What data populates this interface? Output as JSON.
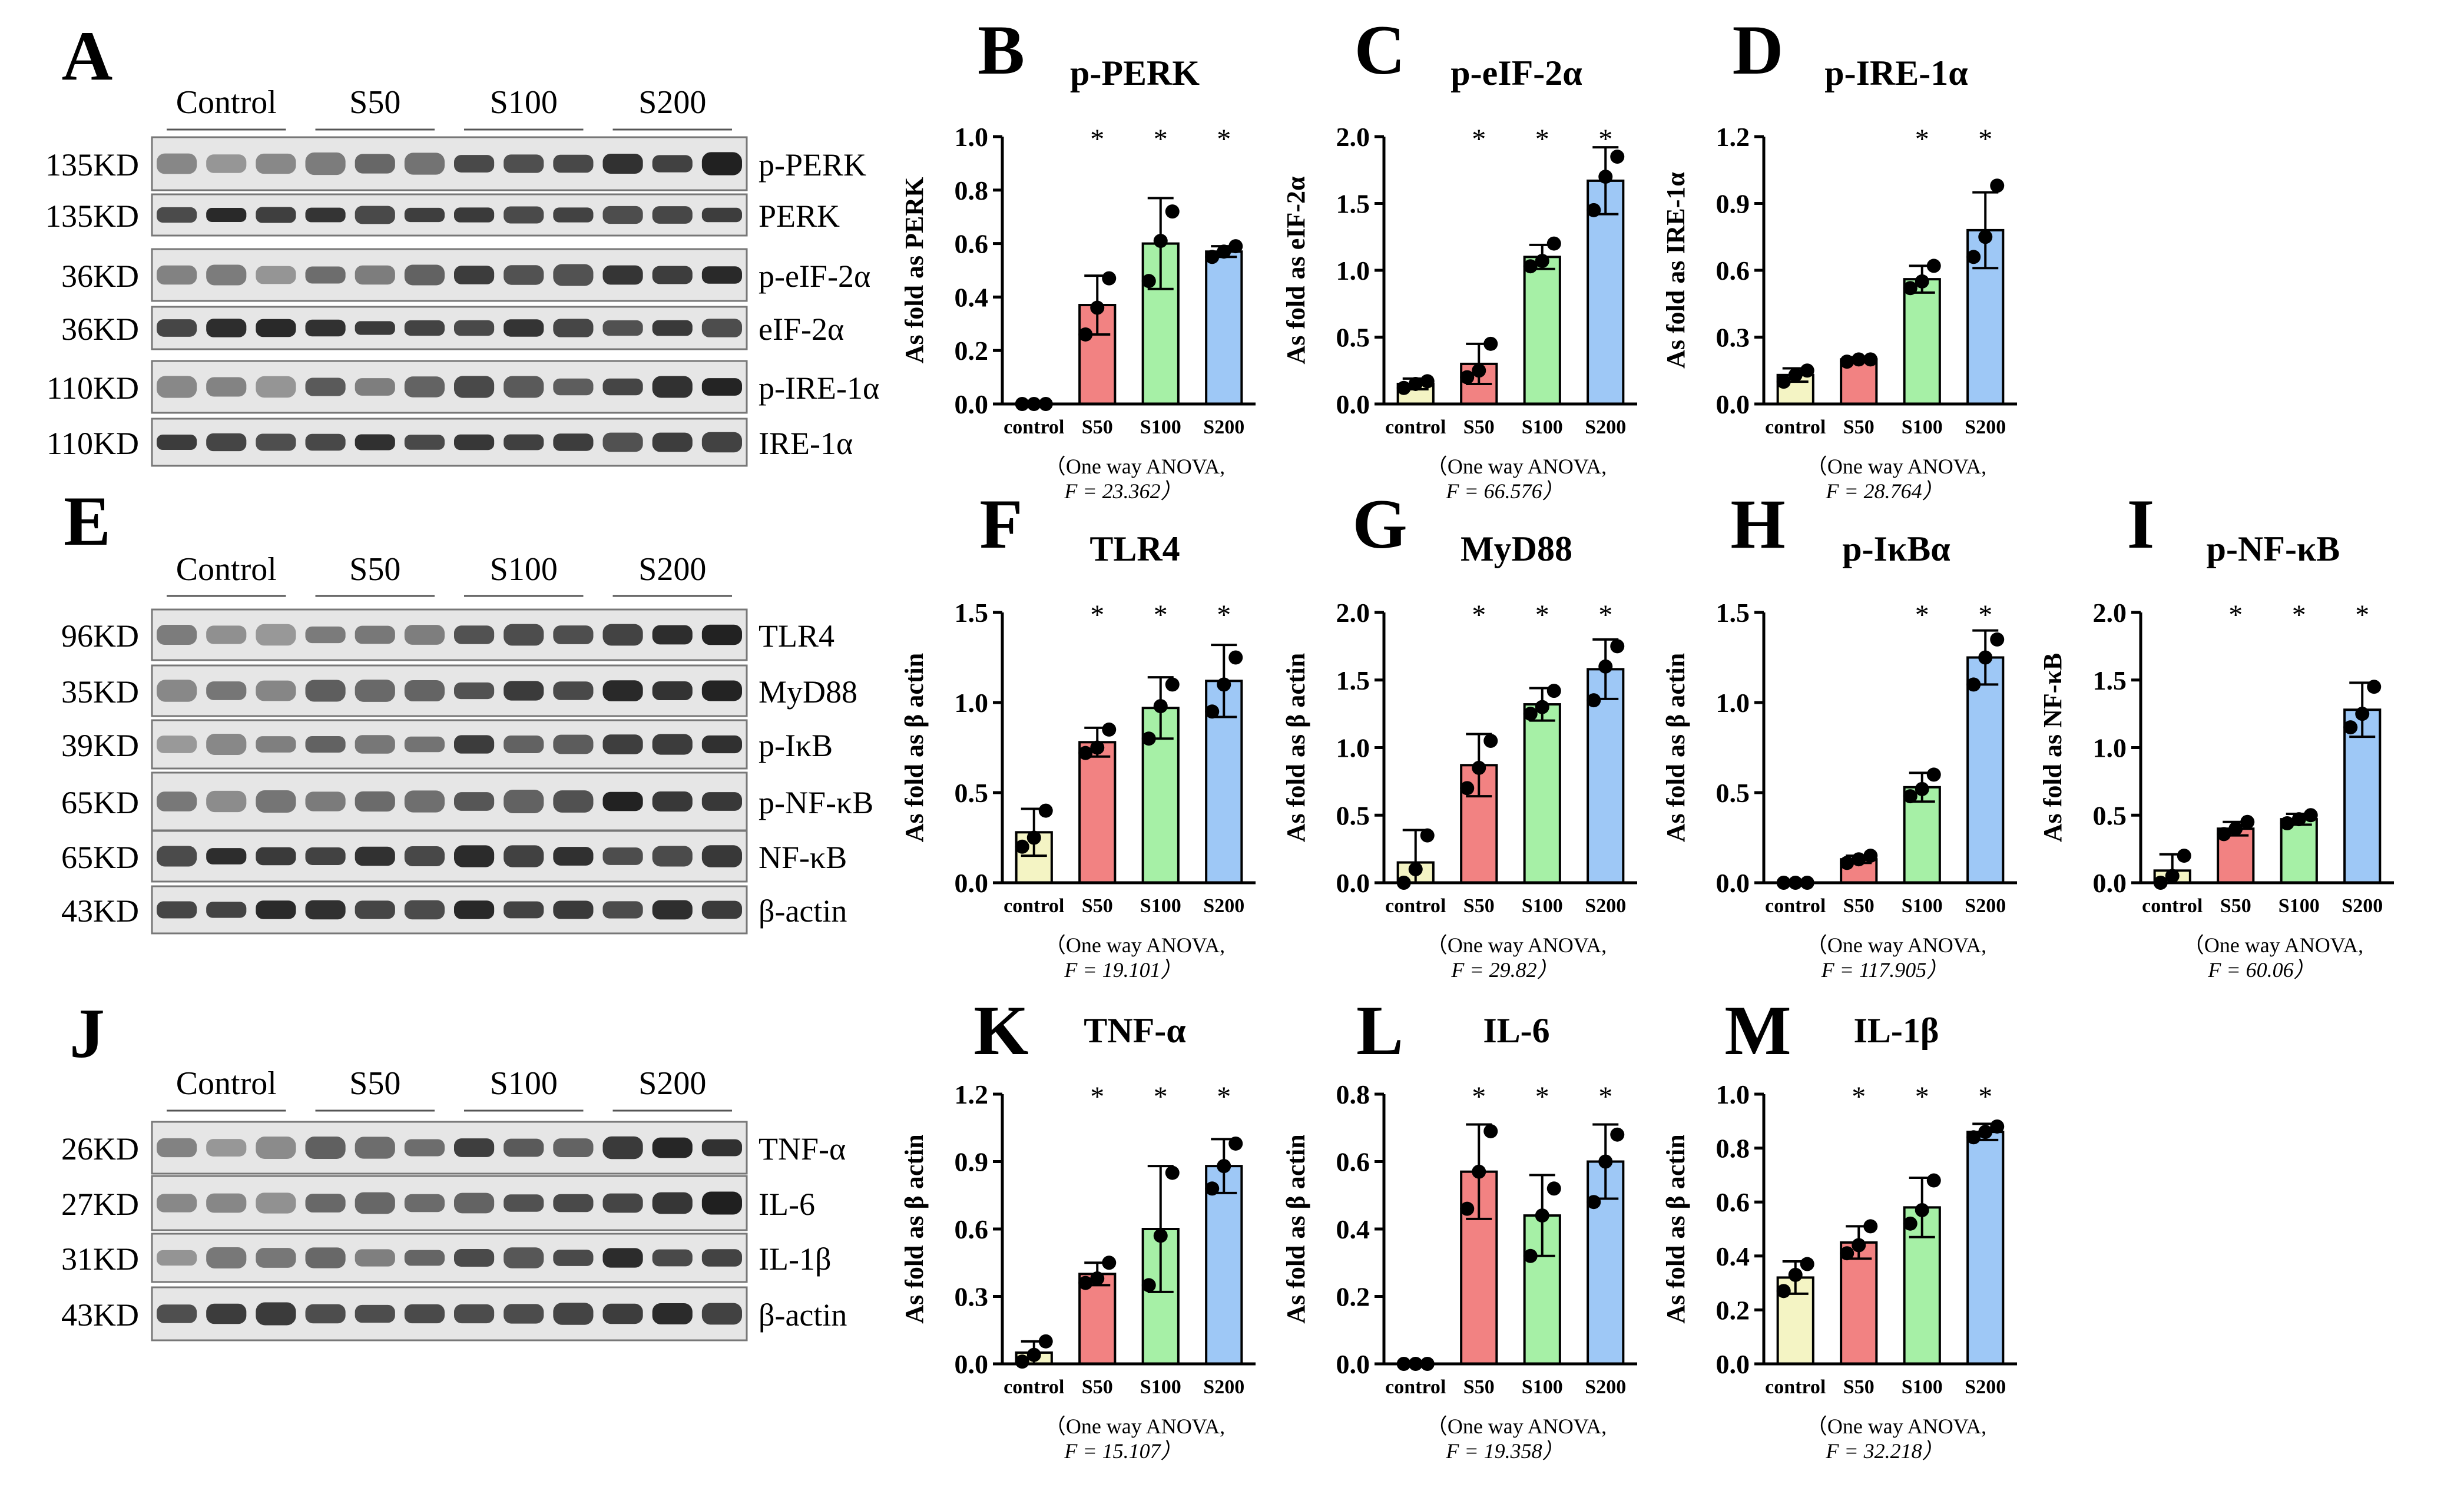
{
  "colors": {
    "control": "#f4f4c4",
    "S50": "#f28282",
    "S100": "#a6f0a6",
    "S200": "#9ec8f6",
    "ink": "#000000"
  },
  "blots": [
    {
      "letter": "A",
      "groups": [
        "Control",
        "S50",
        "S100",
        "S200"
      ],
      "rows": [
        {
          "mw": "135KD",
          "label": "p-PERK"
        },
        {
          "mw": "135KD",
          "label": "PERK"
        },
        {
          "mw": "36KD",
          "label": "p-eIF-2α"
        },
        {
          "mw": "36KD",
          "label": "eIF-2α"
        },
        {
          "mw": "110KD",
          "label": "p-IRE-1α"
        },
        {
          "mw": "110KD",
          "label": "IRE-1α"
        }
      ]
    },
    {
      "letter": "E",
      "groups": [
        "Control",
        "S50",
        "S100",
        "S200"
      ],
      "rows": [
        {
          "mw": "96KD",
          "label": "TLR4"
        },
        {
          "mw": "35KD",
          "label": "MyD88"
        },
        {
          "mw": "39KD",
          "label": "p-IκB"
        },
        {
          "mw": "65KD",
          "label": "p-NF-κB"
        },
        {
          "mw": "65KD",
          "label": "NF-κB"
        },
        {
          "mw": "43KD",
          "label": "β-actin"
        }
      ]
    },
    {
      "letter": "J",
      "groups": [
        "Control",
        "S50",
        "S100",
        "S200"
      ],
      "rows": [
        {
          "mw": "26KD",
          "label": "TNF-α"
        },
        {
          "mw": "27KD",
          "label": "IL-6"
        },
        {
          "mw": "31KD",
          "label": "IL-1β"
        },
        {
          "mw": "43KD",
          "label": "β-actin"
        }
      ]
    }
  ],
  "chart_data": [
    {
      "letter": "B",
      "type": "bar",
      "title": "p-PERK",
      "ylabel": "As fold as PERK",
      "categories": [
        "control",
        "S50",
        "S100",
        "S200"
      ],
      "values": [
        0.0,
        0.37,
        0.6,
        0.57
      ],
      "errors": [
        0.0,
        0.11,
        0.17,
        0.02
      ],
      "points": [
        [
          0.0,
          0.0,
          0.0
        ],
        [
          0.26,
          0.36,
          0.47
        ],
        [
          0.46,
          0.61,
          0.72
        ],
        [
          0.55,
          0.57,
          0.59
        ]
      ],
      "ylim": [
        0,
        1.0
      ],
      "yticks": [
        "0.0",
        "0.2",
        "0.4",
        "0.6",
        "0.8",
        "1.0"
      ],
      "significance": [
        "",
        "*",
        "*",
        "*"
      ],
      "stats_note": [
        "（One way ANOVA,",
        "F = 23.362）"
      ]
    },
    {
      "letter": "C",
      "type": "bar",
      "title": "p-eIF-2α",
      "ylabel": "As fold as eIF-2α",
      "categories": [
        "control",
        "S50",
        "S100",
        "S200"
      ],
      "values": [
        0.15,
        0.3,
        1.1,
        1.67
      ],
      "errors": [
        0.04,
        0.15,
        0.09,
        0.25
      ],
      "points": [
        [
          0.12,
          0.15,
          0.17
        ],
        [
          0.2,
          0.25,
          0.45
        ],
        [
          1.03,
          1.07,
          1.2
        ],
        [
          1.45,
          1.7,
          1.85
        ]
      ],
      "ylim": [
        0,
        2.0
      ],
      "yticks": [
        "0.0",
        "0.5",
        "1.0",
        "1.5",
        "2.0"
      ],
      "significance": [
        "",
        "*",
        "*",
        "*"
      ],
      "stats_note": [
        "（One way ANOVA,",
        "F = 66.576）"
      ]
    },
    {
      "letter": "D",
      "type": "bar",
      "title": "p-IRE-1α",
      "ylabel": "As fold as IRE-1α",
      "categories": [
        "control",
        "S50",
        "S100",
        "S200"
      ],
      "values": [
        0.13,
        0.2,
        0.56,
        0.78
      ],
      "errors": [
        0.03,
        0.01,
        0.06,
        0.17
      ],
      "points": [
        [
          0.1,
          0.13,
          0.15
        ],
        [
          0.19,
          0.2,
          0.2
        ],
        [
          0.52,
          0.55,
          0.62
        ],
        [
          0.66,
          0.75,
          0.98
        ]
      ],
      "ylim": [
        0,
        1.2
      ],
      "yticks": [
        "0.0",
        "0.3",
        "0.6",
        "0.9",
        "1.2"
      ],
      "significance": [
        "",
        "",
        "*",
        "*"
      ],
      "stats_note": [
        "（One way ANOVA,",
        "F = 28.764）"
      ]
    },
    {
      "letter": "F",
      "type": "bar",
      "title": "TLR4",
      "ylabel": "As fold as β actin",
      "categories": [
        "control",
        "S50",
        "S100",
        "S200"
      ],
      "values": [
        0.28,
        0.78,
        0.97,
        1.12
      ],
      "errors": [
        0.13,
        0.08,
        0.17,
        0.2
      ],
      "points": [
        [
          0.2,
          0.25,
          0.4
        ],
        [
          0.72,
          0.75,
          0.85
        ],
        [
          0.8,
          0.98,
          1.1
        ],
        [
          0.95,
          1.1,
          1.25
        ]
      ],
      "ylim": [
        0,
        1.5
      ],
      "yticks": [
        "0.0",
        "0.5",
        "1.0",
        "1.5"
      ],
      "significance": [
        "",
        "*",
        "*",
        "*"
      ],
      "stats_note": [
        "（One way ANOVA,",
        "F = 19.101）"
      ]
    },
    {
      "letter": "G",
      "type": "bar",
      "title": "MyD88",
      "ylabel": "As fold as β actin",
      "categories": [
        "control",
        "S50",
        "S100",
        "S200"
      ],
      "values": [
        0.15,
        0.87,
        1.32,
        1.58
      ],
      "errors": [
        0.24,
        0.23,
        0.12,
        0.22
      ],
      "points": [
        [
          0.0,
          0.1,
          0.35
        ],
        [
          0.7,
          0.85,
          1.05
        ],
        [
          1.25,
          1.3,
          1.42
        ],
        [
          1.35,
          1.6,
          1.75
        ]
      ],
      "ylim": [
        0,
        2.0
      ],
      "yticks": [
        "0.0",
        "0.5",
        "1.0",
        "1.5",
        "2.0"
      ],
      "significance": [
        "",
        "*",
        "*",
        "*"
      ],
      "stats_note": [
        "（One way ANOVA,",
        "F = 29.82）"
      ]
    },
    {
      "letter": "H",
      "type": "bar",
      "title": "p-IκBα",
      "ylabel": "As fold as β actin",
      "categories": [
        "control",
        "S50",
        "S100",
        "S200"
      ],
      "values": [
        0.0,
        0.13,
        0.53,
        1.25
      ],
      "errors": [
        0.0,
        0.02,
        0.08,
        0.15
      ],
      "points": [
        [
          0.0,
          0.0,
          0.0
        ],
        [
          0.11,
          0.13,
          0.15
        ],
        [
          0.48,
          0.52,
          0.6
        ],
        [
          1.1,
          1.25,
          1.35
        ]
      ],
      "ylim": [
        0,
        1.5
      ],
      "yticks": [
        "0.0",
        "0.5",
        "1.0",
        "1.5"
      ],
      "significance": [
        "",
        "",
        "*",
        "*"
      ],
      "stats_note": [
        "（One way ANOVA,",
        "F = 117.905）"
      ]
    },
    {
      "letter": "I",
      "type": "bar",
      "title": "p-NF-κB",
      "ylabel": "As fold as NF-κB",
      "categories": [
        "control",
        "S50",
        "S100",
        "S200"
      ],
      "values": [
        0.09,
        0.4,
        0.47,
        1.28
      ],
      "errors": [
        0.12,
        0.05,
        0.04,
        0.2
      ],
      "points": [
        [
          0.0,
          0.05,
          0.2
        ],
        [
          0.36,
          0.4,
          0.45
        ],
        [
          0.44,
          0.47,
          0.5
        ],
        [
          1.15,
          1.25,
          1.45
        ]
      ],
      "ylim": [
        0,
        2.0
      ],
      "yticks": [
        "0.0",
        "0.5",
        "1.0",
        "1.5",
        "2.0"
      ],
      "significance": [
        "",
        "*",
        "*",
        "*"
      ],
      "stats_note": [
        "（One way ANOVA,",
        "F = 60.06）"
      ]
    },
    {
      "letter": "K",
      "type": "bar",
      "title": "TNF-α",
      "ylabel": "As fold as β actin",
      "categories": [
        "control",
        "S50",
        "S100",
        "S200"
      ],
      "values": [
        0.05,
        0.4,
        0.6,
        0.88
      ],
      "errors": [
        0.05,
        0.05,
        0.28,
        0.12
      ],
      "points": [
        [
          0.01,
          0.04,
          0.1
        ],
        [
          0.36,
          0.38,
          0.45
        ],
        [
          0.35,
          0.57,
          0.85
        ],
        [
          0.78,
          0.88,
          0.98
        ]
      ],
      "ylim": [
        0,
        1.2
      ],
      "yticks": [
        "0.0",
        "0.3",
        "0.6",
        "0.9",
        "1.2"
      ],
      "significance": [
        "",
        "*",
        "*",
        "*"
      ],
      "stats_note": [
        "（One way ANOVA,",
        "F = 15.107）"
      ]
    },
    {
      "letter": "L",
      "type": "bar",
      "title": "IL-6",
      "ylabel": "As fold as β actin",
      "categories": [
        "control",
        "S50",
        "S100",
        "S200"
      ],
      "values": [
        0.0,
        0.57,
        0.44,
        0.6
      ],
      "errors": [
        0.0,
        0.14,
        0.12,
        0.11
      ],
      "points": [
        [
          0.0,
          0.0,
          0.0
        ],
        [
          0.46,
          0.57,
          0.69
        ],
        [
          0.32,
          0.44,
          0.52
        ],
        [
          0.48,
          0.6,
          0.68
        ]
      ],
      "ylim": [
        0,
        0.8
      ],
      "yticks": [
        "0.0",
        "0.2",
        "0.4",
        "0.6",
        "0.8"
      ],
      "significance": [
        "",
        "*",
        "*",
        "*"
      ],
      "stats_note": [
        "（One way ANOVA,",
        "F = 19.358）"
      ]
    },
    {
      "letter": "M",
      "type": "bar",
      "title": "IL-1β",
      "ylabel": "As fold as β actin",
      "categories": [
        "control",
        "S50",
        "S100",
        "S200"
      ],
      "values": [
        0.32,
        0.45,
        0.58,
        0.86
      ],
      "errors": [
        0.06,
        0.06,
        0.11,
        0.03
      ],
      "points": [
        [
          0.27,
          0.33,
          0.37
        ],
        [
          0.41,
          0.44,
          0.51
        ],
        [
          0.52,
          0.57,
          0.68
        ],
        [
          0.84,
          0.86,
          0.88
        ]
      ],
      "ylim": [
        0,
        1.0
      ],
      "yticks": [
        "0.0",
        "0.2",
        "0.4",
        "0.6",
        "0.8",
        "1.0"
      ],
      "significance": [
        "",
        "*",
        "*",
        "*"
      ],
      "stats_note": [
        "（One way ANOVA,",
        "F = 32.218）"
      ]
    }
  ]
}
